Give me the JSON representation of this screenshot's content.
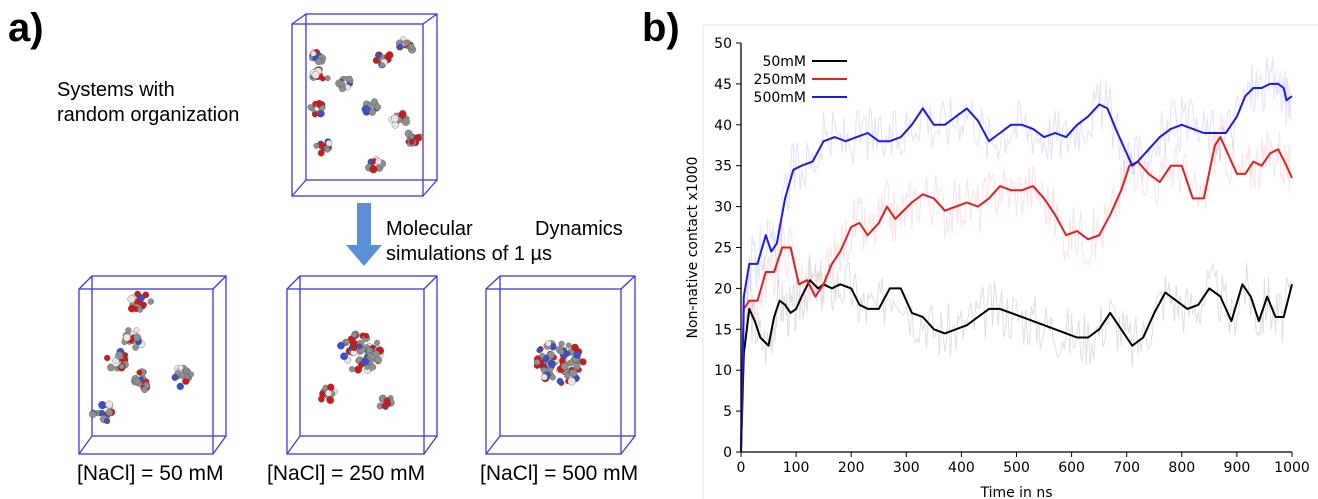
{
  "panel_a": {
    "label": "a)",
    "random_text_line1": "Systems with",
    "random_text_line2": "random organization",
    "md_line1_word1": "Molecular",
    "md_line1_word2": "Dynamics",
    "md_line2": "simulations of 1 µs",
    "captions": [
      "[NaCl] = 50 mM",
      "[NaCl] = 250 mM",
      "[NaCl] = 500 mM"
    ],
    "colors": {
      "box": "#3a3ae0",
      "atom_red": "#d11818",
      "atom_gray": "#8f8f8f",
      "atom_white": "#e6e6e6",
      "atom_blue": "#3a4fc8",
      "arrow": "#5b8fd6"
    }
  },
  "panel_b": {
    "label": "b)"
  },
  "chart_data": {
    "type": "line",
    "title": "",
    "xlabel": "Time in ns",
    "ylabel": "Non-native contact x1000",
    "xlim": [
      0,
      1000
    ],
    "ylim": [
      0,
      50
    ],
    "xticks": [
      0,
      100,
      200,
      300,
      400,
      500,
      600,
      700,
      800,
      900,
      1000
    ],
    "yticks": [
      0,
      5,
      10,
      15,
      20,
      25,
      30,
      35,
      40,
      45,
      50
    ],
    "grid": false,
    "legend_position": "top-left",
    "series": [
      {
        "name": "50mM",
        "color": "#000000",
        "x": [
          0,
          5,
          15,
          25,
          35,
          50,
          60,
          70,
          80,
          90,
          100,
          110,
          125,
          140,
          150,
          165,
          180,
          200,
          215,
          230,
          250,
          270,
          290,
          310,
          330,
          350,
          370,
          390,
          410,
          430,
          450,
          470,
          490,
          510,
          530,
          550,
          570,
          590,
          610,
          630,
          650,
          670,
          690,
          710,
          730,
          750,
          770,
          790,
          810,
          830,
          850,
          870,
          890,
          910,
          925,
          940,
          955,
          970,
          985,
          1000
        ],
        "y": [
          0,
          12,
          17.5,
          16,
          14,
          13,
          16.5,
          18.5,
          18,
          17,
          17.5,
          19,
          21,
          20,
          20.5,
          20,
          20.5,
          20,
          18,
          17.5,
          17.5,
          20,
          20,
          17,
          16.5,
          15,
          14.5,
          15,
          15.5,
          16.5,
          17.5,
          17.5,
          17,
          16.5,
          16,
          15.5,
          15,
          14.5,
          14,
          14,
          15,
          17,
          15,
          13,
          14,
          17,
          19.5,
          18.5,
          17.5,
          18,
          20,
          19,
          16,
          20.5,
          19,
          16,
          19,
          16.5,
          16.5,
          20.5
        ]
      },
      {
        "name": "250mM",
        "color": "#e02020",
        "x": [
          0,
          5,
          15,
          30,
          45,
          60,
          75,
          90,
          105,
          120,
          135,
          150,
          165,
          180,
          200,
          215,
          230,
          250,
          265,
          280,
          295,
          310,
          330,
          350,
          370,
          390,
          410,
          430,
          450,
          470,
          490,
          510,
          530,
          550,
          570,
          590,
          610,
          630,
          650,
          670,
          690,
          705,
          720,
          740,
          760,
          780,
          800,
          820,
          840,
          860,
          870,
          880,
          900,
          915,
          930,
          945,
          960,
          975,
          990,
          1000
        ],
        "y": [
          0,
          17.5,
          18.5,
          18.5,
          22,
          22,
          25,
          25,
          20.5,
          21,
          19,
          20.5,
          23,
          24.5,
          27.5,
          28,
          26.5,
          28,
          30,
          28.5,
          29.5,
          30.5,
          31.5,
          31,
          29.5,
          30,
          30.5,
          30,
          31,
          32.5,
          32,
          32,
          32.5,
          31,
          29,
          26.5,
          27,
          26,
          26.5,
          29,
          32,
          35,
          35.5,
          34,
          33,
          35,
          35,
          31,
          31,
          37.5,
          38.5,
          37,
          34,
          34,
          35.5,
          35,
          36.5,
          37,
          35,
          33.5
        ]
      },
      {
        "name": "500mM",
        "color": "#1a1aee",
        "x": [
          0,
          5,
          15,
          30,
          45,
          55,
          65,
          80,
          95,
          110,
          130,
          150,
          170,
          190,
          210,
          230,
          250,
          270,
          290,
          310,
          330,
          350,
          370,
          390,
          410,
          430,
          450,
          470,
          490,
          510,
          530,
          550,
          570,
          590,
          610,
          630,
          650,
          665,
          680,
          700,
          710,
          720,
          740,
          760,
          780,
          800,
          820,
          840,
          860,
          880,
          900,
          915,
          930,
          945,
          960,
          975,
          985,
          990,
          1000
        ],
        "y": [
          0,
          19,
          23,
          23,
          26.5,
          24.5,
          25.5,
          31,
          34.5,
          35,
          35.5,
          38,
          38.5,
          38,
          38.5,
          39,
          38,
          38,
          38.5,
          40,
          42,
          40,
          40,
          41,
          42,
          40.5,
          38,
          39,
          40,
          40,
          39.5,
          38.5,
          39,
          38.5,
          40,
          41,
          42.5,
          42,
          39.5,
          36.5,
          35,
          35.5,
          37,
          38.5,
          39.5,
          40,
          39.5,
          39,
          39,
          39,
          41,
          43.5,
          44.5,
          44.5,
          45,
          45,
          44.5,
          43,
          43.5
        ]
      }
    ]
  }
}
